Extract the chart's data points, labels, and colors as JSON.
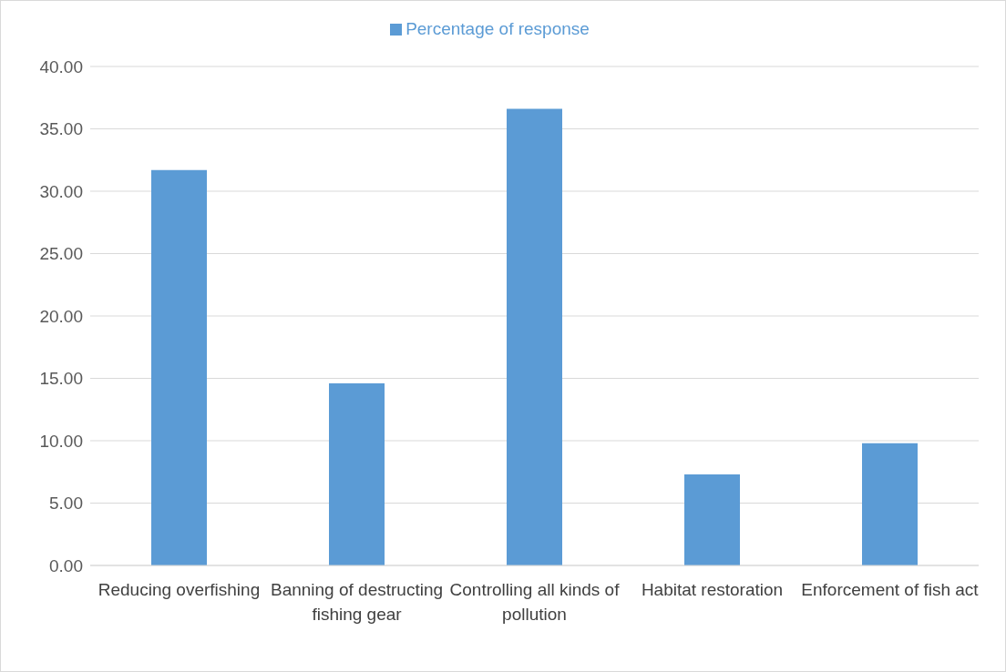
{
  "chart_data": {
    "type": "bar",
    "categories": [
      "Reducing overfishing",
      "Banning of destructing fishing gear",
      "Controlling all kinds of pollution",
      "Habitat restoration",
      "Enforcement of fish act"
    ],
    "series": [
      {
        "name": "Percentage of response",
        "color": "#5b9bd5",
        "values": [
          31.7,
          14.6,
          36.6,
          7.3,
          9.8
        ]
      }
    ],
    "ylim": [
      0,
      40
    ],
    "yticks": [
      {
        "value": 0,
        "label": "0.00"
      },
      {
        "value": 5,
        "label": "5.00"
      },
      {
        "value": 10,
        "label": "10.00"
      },
      {
        "value": 15,
        "label": "15.00"
      },
      {
        "value": 20,
        "label": "20.00"
      },
      {
        "value": 25,
        "label": "25.00"
      },
      {
        "value": 30,
        "label": "30.00"
      },
      {
        "value": 35,
        "label": "35.00"
      },
      {
        "value": 40,
        "label": "40.00"
      }
    ],
    "grid": "y",
    "legend": "top"
  }
}
